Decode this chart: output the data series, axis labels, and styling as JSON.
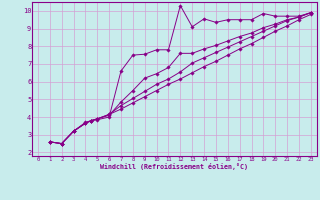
{
  "bg_color": "#b0dede",
  "plot_bg_color": "#c8ecec",
  "line_color": "#880088",
  "grid_color": "#d4a0d4",
  "axis_color": "#880088",
  "xlabel": "Windchill (Refroidissement éolien,°C)",
  "xlim": [
    -0.5,
    23.5
  ],
  "ylim": [
    1.8,
    10.5
  ],
  "yticks": [
    2,
    3,
    4,
    5,
    6,
    7,
    8,
    9,
    10
  ],
  "xticks": [
    0,
    1,
    2,
    3,
    4,
    5,
    6,
    7,
    8,
    9,
    10,
    11,
    12,
    13,
    14,
    15,
    16,
    17,
    18,
    19,
    20,
    21,
    22,
    23
  ],
  "lines": [
    {
      "x": [
        1,
        2,
        3,
        4,
        4.5,
        5,
        6,
        7,
        8,
        9,
        10,
        11,
        12,
        13,
        14,
        15,
        16,
        17,
        18,
        19,
        20,
        21,
        22,
        23
      ],
      "y": [
        2.6,
        2.5,
        3.2,
        3.7,
        3.8,
        3.85,
        4.0,
        6.6,
        7.5,
        7.55,
        7.8,
        7.8,
        10.3,
        9.1,
        9.55,
        9.35,
        9.5,
        9.5,
        9.5,
        9.85,
        9.7,
        9.7,
        9.7,
        9.9
      ]
    },
    {
      "x": [
        1,
        2,
        3,
        4,
        4.5,
        5,
        6,
        7,
        8,
        9,
        10,
        11,
        12,
        13,
        14,
        15,
        16,
        17,
        18,
        19,
        20,
        21,
        22,
        23
      ],
      "y": [
        2.6,
        2.5,
        3.2,
        3.65,
        3.8,
        3.9,
        4.1,
        4.85,
        5.5,
        6.2,
        6.45,
        6.8,
        7.6,
        7.6,
        7.85,
        8.05,
        8.3,
        8.55,
        8.75,
        9.05,
        9.25,
        9.5,
        9.65,
        9.9
      ]
    },
    {
      "x": [
        1,
        2,
        3,
        4,
        4.5,
        5,
        6,
        7,
        8,
        9,
        10,
        11,
        12,
        13,
        14,
        15,
        16,
        17,
        18,
        19,
        20,
        21,
        22,
        23
      ],
      "y": [
        2.6,
        2.5,
        3.2,
        3.65,
        3.8,
        3.9,
        4.15,
        4.65,
        5.05,
        5.45,
        5.85,
        6.15,
        6.55,
        7.05,
        7.35,
        7.65,
        7.95,
        8.25,
        8.55,
        8.85,
        9.15,
        9.45,
        9.65,
        9.9
      ]
    },
    {
      "x": [
        1,
        2,
        3,
        4,
        4.5,
        5,
        6,
        7,
        8,
        9,
        10,
        11,
        12,
        13,
        14,
        15,
        16,
        17,
        18,
        19,
        20,
        21,
        22,
        23
      ],
      "y": [
        2.6,
        2.5,
        3.2,
        3.65,
        3.8,
        3.9,
        4.15,
        4.45,
        4.8,
        5.15,
        5.5,
        5.85,
        6.15,
        6.5,
        6.85,
        7.15,
        7.5,
        7.85,
        8.15,
        8.5,
        8.85,
        9.15,
        9.5,
        9.8
      ]
    }
  ]
}
